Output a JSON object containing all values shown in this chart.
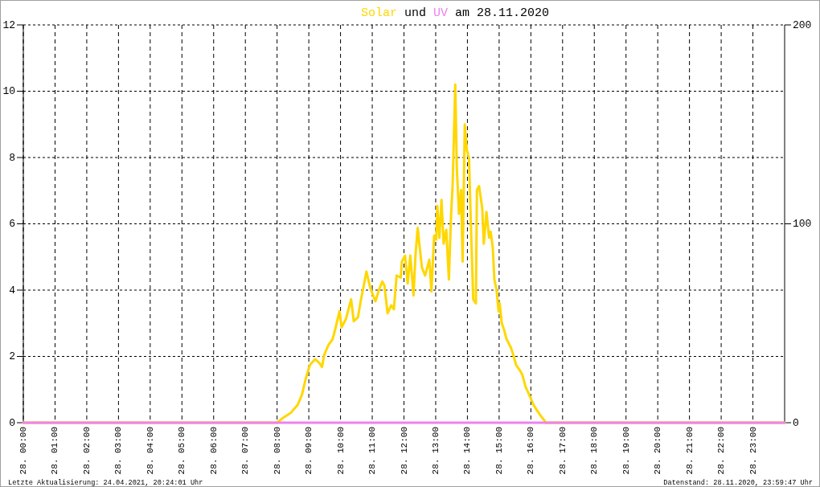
{
  "chart_data": {
    "type": "line",
    "title": "Solar und UV am 28.11.2020",
    "annotations": [
      "Letzte Aktualisierung: 24.04.2021, 20:24:01 Uhr",
      "Datenstand: 28.11.2020, 23:59:47 Uhr"
    ],
    "xlim": [
      "2020-11-28T00:00",
      "2020-11-29T00:00"
    ],
    "xticks": [
      {
        "value": "2020-11-28T00:00",
        "label": "28. 00:00"
      },
      {
        "value": "2020-11-28T01:00",
        "label": "28. 01:00"
      },
      {
        "value": "2020-11-28T02:00",
        "label": "28. 02:00"
      },
      {
        "value": "2020-11-28T03:00",
        "label": "28. 03:00"
      },
      {
        "value": "2020-11-28T04:00",
        "label": "28. 04:00"
      },
      {
        "value": "2020-11-28T05:00",
        "label": "28. 05:00"
      },
      {
        "value": "2020-11-28T06:00",
        "label": "28. 06:00"
      },
      {
        "value": "2020-11-28T07:00",
        "label": "28. 07:00"
      },
      {
        "value": "2020-11-28T08:00",
        "label": "28. 08:00"
      },
      {
        "value": "2020-11-28T09:00",
        "label": "28. 09:00"
      },
      {
        "value": "2020-11-28T10:00",
        "label": "28. 10:00"
      },
      {
        "value": "2020-11-28T11:00",
        "label": "28. 11:00"
      },
      {
        "value": "2020-11-28T12:00",
        "label": "28. 12:00"
      },
      {
        "value": "2020-11-28T13:00",
        "label": "28. 13:00"
      },
      {
        "value": "2020-11-28T14:00",
        "label": "28. 14:00"
      },
      {
        "value": "2020-11-28T15:00",
        "label": "28. 15:00"
      },
      {
        "value": "2020-11-28T16:00",
        "label": "28. 16:00"
      },
      {
        "value": "2020-11-28T17:00",
        "label": "28. 17:00"
      },
      {
        "value": "2020-11-28T18:00",
        "label": "28. 18:00"
      },
      {
        "value": "2020-11-28T19:00",
        "label": "28. 19:00"
      },
      {
        "value": "2020-11-28T20:00",
        "label": "28. 20:00"
      },
      {
        "value": "2020-11-28T21:00",
        "label": "28. 21:00"
      },
      {
        "value": "2020-11-28T22:00",
        "label": "28. 22:00"
      },
      {
        "value": "2020-11-28T23:00",
        "label": "28. 23:00"
      }
    ],
    "ylim": [
      0,
      12
    ],
    "yticks": [
      0,
      2,
      4,
      6,
      8,
      10,
      12
    ],
    "y2lim": [
      0,
      200
    ],
    "y2ticks": [
      0,
      100,
      200
    ],
    "grid": true,
    "series": [
      {
        "color": "#ffd700",
        "axis": "y2",
        "x": [
          "2020-11-28T00:00",
          "2020-11-28T08:00",
          "2020-11-28T08:09",
          "2020-11-28T08:26",
          "2020-11-28T08:39",
          "2020-11-28T08:47",
          "2020-11-28T08:54",
          "2020-11-28T09:02",
          "2020-11-28T09:12",
          "2020-11-28T09:20",
          "2020-11-28T09:25",
          "2020-11-28T09:29",
          "2020-11-28T09:37",
          "2020-11-28T09:45",
          "2020-11-28T09:50",
          "2020-11-28T09:58",
          "2020-11-28T10:02",
          "2020-11-28T10:10",
          "2020-11-28T10:20",
          "2020-11-28T10:25",
          "2020-11-28T10:33",
          "2020-11-28T10:38",
          "2020-11-28T10:44",
          "2020-11-28T10:49",
          "2020-11-28T10:56",
          "2020-11-28T11:06",
          "2020-11-28T11:13",
          "2020-11-28T11:19",
          "2020-11-28T11:23",
          "2020-11-28T11:29",
          "2020-11-28T11:36",
          "2020-11-28T11:41",
          "2020-11-28T11:46",
          "2020-11-28T11:54",
          "2020-11-28T11:56",
          "2020-11-28T12:02",
          "2020-11-28T12:07",
          "2020-11-28T12:12",
          "2020-11-28T12:18",
          "2020-11-28T12:22",
          "2020-11-28T12:26",
          "2020-11-28T12:29",
          "2020-11-28T12:34",
          "2020-11-28T12:40",
          "2020-11-28T12:44",
          "2020-11-28T12:48",
          "2020-11-28T12:52",
          "2020-11-28T12:57",
          "2020-11-28T13:01",
          "2020-11-28T13:03",
          "2020-11-28T13:07",
          "2020-11-28T13:11",
          "2020-11-28T13:15",
          "2020-11-28T13:20",
          "2020-11-28T13:25",
          "2020-11-28T13:29",
          "2020-11-28T13:32",
          "2020-11-28T13:37",
          "2020-11-28T13:40",
          "2020-11-28T13:44",
          "2020-11-28T13:48",
          "2020-11-28T13:51",
          "2020-11-28T13:55",
          "2020-11-28T13:59",
          "2020-11-28T14:03",
          "2020-11-28T14:07",
          "2020-11-28T14:11",
          "2020-11-28T14:16",
          "2020-11-28T14:18",
          "2020-11-28T14:22",
          "2020-11-28T14:28",
          "2020-11-28T14:31",
          "2020-11-28T14:36",
          "2020-11-28T14:41",
          "2020-11-28T14:44",
          "2020-11-28T14:48",
          "2020-11-28T14:51",
          "2020-11-28T14:55",
          "2020-11-28T14:59",
          "2020-11-28T15:01",
          "2020-11-28T15:05",
          "2020-11-28T15:09",
          "2020-11-28T15:14",
          "2020-11-28T15:22",
          "2020-11-28T15:27",
          "2020-11-28T15:32",
          "2020-11-28T15:40",
          "2020-11-28T15:44",
          "2020-11-28T15:50",
          "2020-11-28T15:57",
          "2020-11-28T16:05",
          "2020-11-28T16:12",
          "2020-11-28T16:20",
          "2020-11-28T16:26",
          "2020-11-28T16:28",
          "2020-11-29T00:00"
        ],
        "values": [
          0,
          0,
          2,
          5,
          9,
          14,
          22,
          29,
          32,
          30,
          28,
          34,
          39,
          42,
          47,
          56,
          48,
          52,
          62,
          51,
          53,
          61,
          69,
          76,
          68,
          61,
          67,
          71,
          69,
          55,
          59,
          57,
          74,
          73,
          81,
          84,
          70,
          84,
          64,
          85,
          98,
          90,
          78,
          74,
          78,
          82,
          66,
          94,
          92,
          109,
          93,
          112,
          90,
          97,
          72,
          104,
          119,
          170,
          128,
          105,
          117,
          81,
          150,
          137,
          133,
          96,
          62,
          60,
          117,
          119,
          108,
          90,
          106,
          93,
          96,
          88,
          72,
          67,
          56,
          60,
          50,
          47,
          42,
          38,
          34,
          29,
          26,
          24,
          18,
          14,
          9,
          6,
          3,
          1,
          0,
          0
        ]
      },
      {
        "color": "#ee82ee",
        "axis": "y",
        "x": [
          "2020-11-28T00:00",
          "2020-11-29T00:00"
        ],
        "values": [
          0,
          0
        ]
      }
    ]
  }
}
